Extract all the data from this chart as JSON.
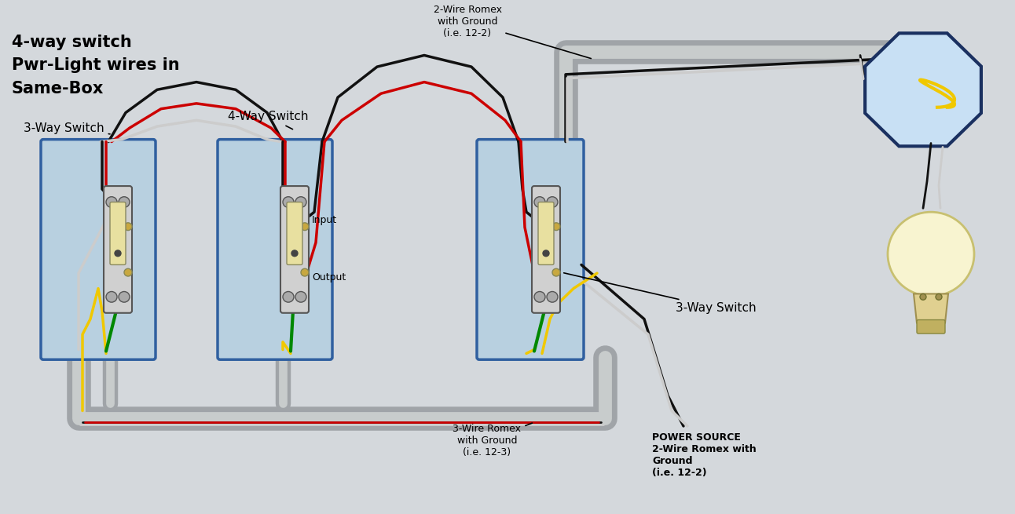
{
  "bg_color": "#d4d8dc",
  "title_lines": [
    "4-way switch",
    "Pwr-Light wires in",
    "Same-Box"
  ],
  "wire_black": "#111111",
  "wire_white": "#cccccc",
  "wire_red": "#cc0000",
  "wire_yellow": "#f0c800",
  "wire_green": "#008800",
  "conduit_outer": "#a0a4a8",
  "conduit_inner": "#c8cccc",
  "box_face": "#b8d0e0",
  "box_edge": "#3060a0",
  "switch_face": "#d0d0d0",
  "switch_edge": "#555555",
  "oct_face": "#c8e0f4",
  "oct_edge": "#1a3060",
  "bulb_face": "#f8f4d0",
  "bulb_base": "#e0d090"
}
